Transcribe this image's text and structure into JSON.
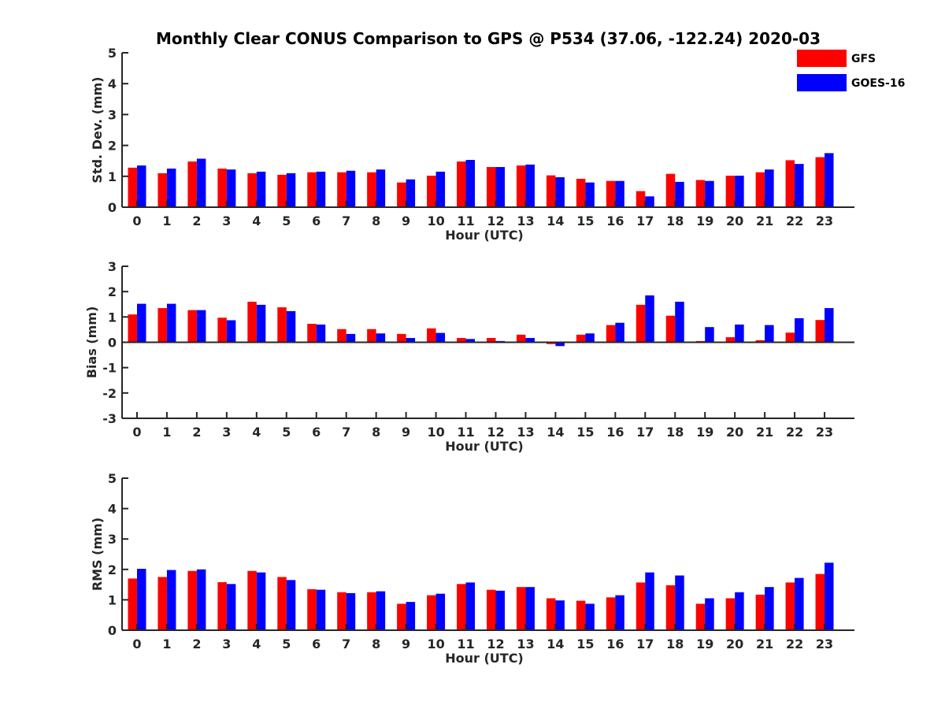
{
  "figure": {
    "title": "Monthly Clear CONUS Comparison to GPS @ P534 (37.06, -122.24) 2020-03"
  },
  "legend": [
    {
      "name": "GFS",
      "color": "#ff0000"
    },
    {
      "name": "GOES-16",
      "color": "#0000ff"
    }
  ],
  "chart_data": [
    {
      "type": "bar",
      "xlabel": "Hour (UTC)",
      "ylabel": "Std. Dev. (mm)",
      "ylim": [
        0,
        5
      ],
      "yticks": [
        0,
        1,
        2,
        3,
        4,
        5
      ],
      "categories": [
        "0",
        "1",
        "2",
        "3",
        "4",
        "5",
        "6",
        "7",
        "8",
        "9",
        "10",
        "11",
        "12",
        "13",
        "14",
        "15",
        "16",
        "17",
        "18",
        "19",
        "20",
        "21",
        "22",
        "23"
      ],
      "series": [
        {
          "name": "GFS",
          "color": "#ff0000",
          "values": [
            1.28,
            1.1,
            1.48,
            1.25,
            1.1,
            1.05,
            1.13,
            1.13,
            1.13,
            0.8,
            1.02,
            1.48,
            1.3,
            1.35,
            1.03,
            0.92,
            0.85,
            0.52,
            1.08,
            0.88,
            1.02,
            1.13,
            1.52,
            1.62
          ]
        },
        {
          "name": "GOES-16",
          "color": "#0000ff",
          "values": [
            1.35,
            1.25,
            1.57,
            1.22,
            1.15,
            1.1,
            1.15,
            1.18,
            1.22,
            0.9,
            1.15,
            1.53,
            1.3,
            1.38,
            0.97,
            0.8,
            0.85,
            0.35,
            0.82,
            0.85,
            1.02,
            1.22,
            1.4,
            1.75
          ]
        }
      ]
    },
    {
      "type": "bar",
      "xlabel": "Hour (UTC)",
      "ylabel": "Bias (mm)",
      "ylim": [
        -3,
        3
      ],
      "yticks": [
        -3,
        -2,
        -1,
        0,
        1,
        2,
        3
      ],
      "categories": [
        "0",
        "1",
        "2",
        "3",
        "4",
        "5",
        "6",
        "7",
        "8",
        "9",
        "10",
        "11",
        "12",
        "13",
        "14",
        "15",
        "16",
        "17",
        "18",
        "19",
        "20",
        "21",
        "22",
        "23"
      ],
      "series": [
        {
          "name": "GFS",
          "color": "#ff0000",
          "values": [
            1.1,
            1.35,
            1.27,
            0.97,
            1.6,
            1.38,
            0.73,
            0.52,
            0.52,
            0.33,
            0.55,
            0.17,
            0.17,
            0.3,
            -0.07,
            0.3,
            0.68,
            1.48,
            1.05,
            0.05,
            0.2,
            0.08,
            0.38,
            0.88
          ]
        },
        {
          "name": "GOES-16",
          "color": "#0000ff",
          "values": [
            1.52,
            1.52,
            1.27,
            0.87,
            1.48,
            1.23,
            0.7,
            0.33,
            0.35,
            0.17,
            0.37,
            0.13,
            0.05,
            0.17,
            -0.15,
            0.35,
            0.77,
            1.85,
            1.6,
            0.6,
            0.7,
            0.68,
            0.95,
            1.35
          ]
        }
      ]
    },
    {
      "type": "bar",
      "xlabel": "Hour (UTC)",
      "ylabel": "RMS (mm)",
      "ylim": [
        0,
        5
      ],
      "yticks": [
        0,
        1,
        2,
        3,
        4,
        5
      ],
      "categories": [
        "0",
        "1",
        "2",
        "3",
        "4",
        "5",
        "6",
        "7",
        "8",
        "9",
        "10",
        "11",
        "12",
        "13",
        "14",
        "15",
        "16",
        "17",
        "18",
        "19",
        "20",
        "21",
        "22",
        "23"
      ],
      "series": [
        {
          "name": "GFS",
          "color": "#ff0000",
          "values": [
            1.7,
            1.75,
            1.95,
            1.58,
            1.95,
            1.75,
            1.35,
            1.25,
            1.25,
            0.87,
            1.15,
            1.52,
            1.33,
            1.42,
            1.05,
            0.97,
            1.08,
            1.57,
            1.48,
            0.87,
            1.05,
            1.17,
            1.57,
            1.85
          ]
        },
        {
          "name": "GOES-16",
          "color": "#0000ff",
          "values": [
            2.02,
            1.98,
            2.0,
            1.52,
            1.9,
            1.65,
            1.33,
            1.22,
            1.28,
            0.93,
            1.2,
            1.57,
            1.3,
            1.42,
            0.98,
            0.87,
            1.15,
            1.9,
            1.8,
            1.05,
            1.25,
            1.42,
            1.72,
            2.22
          ]
        }
      ]
    }
  ]
}
